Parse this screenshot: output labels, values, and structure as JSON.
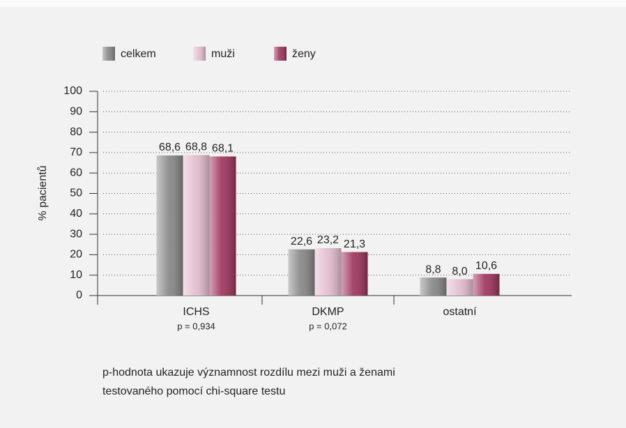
{
  "chart_data": {
    "type": "bar",
    "ylabel": "% pacientů",
    "categories": [
      "ICHS",
      "DKMP",
      "ostatní"
    ],
    "category_notes": [
      "p = 0,934",
      "p = 0,072",
      null
    ],
    "series": [
      {
        "name": "celkem",
        "color": "#858585",
        "values": [
          68.6,
          22.6,
          8.8
        ],
        "value_labels": [
          "68,6",
          "22,6",
          "8,8"
        ]
      },
      {
        "name": "muži",
        "color": "#e3bccd",
        "values": [
          68.8,
          23.2,
          8.0
        ],
        "value_labels": [
          "68,8",
          "23,2",
          "8,0"
        ]
      },
      {
        "name": "ženy",
        "color": "#9c3159",
        "values": [
          68.1,
          21.3,
          10.6
        ],
        "value_labels": [
          "68,1",
          "21,3",
          "10,6"
        ]
      }
    ],
    "ylim": [
      0,
      100
    ],
    "yticks": [
      0,
      10,
      20,
      30,
      40,
      50,
      60,
      70,
      80,
      90,
      100
    ],
    "grid": true,
    "note": [
      "p-hodnota ukazuje významnost rozdílu mezi muži a ženami",
      "testovaného pomocí chi-square testu"
    ]
  }
}
